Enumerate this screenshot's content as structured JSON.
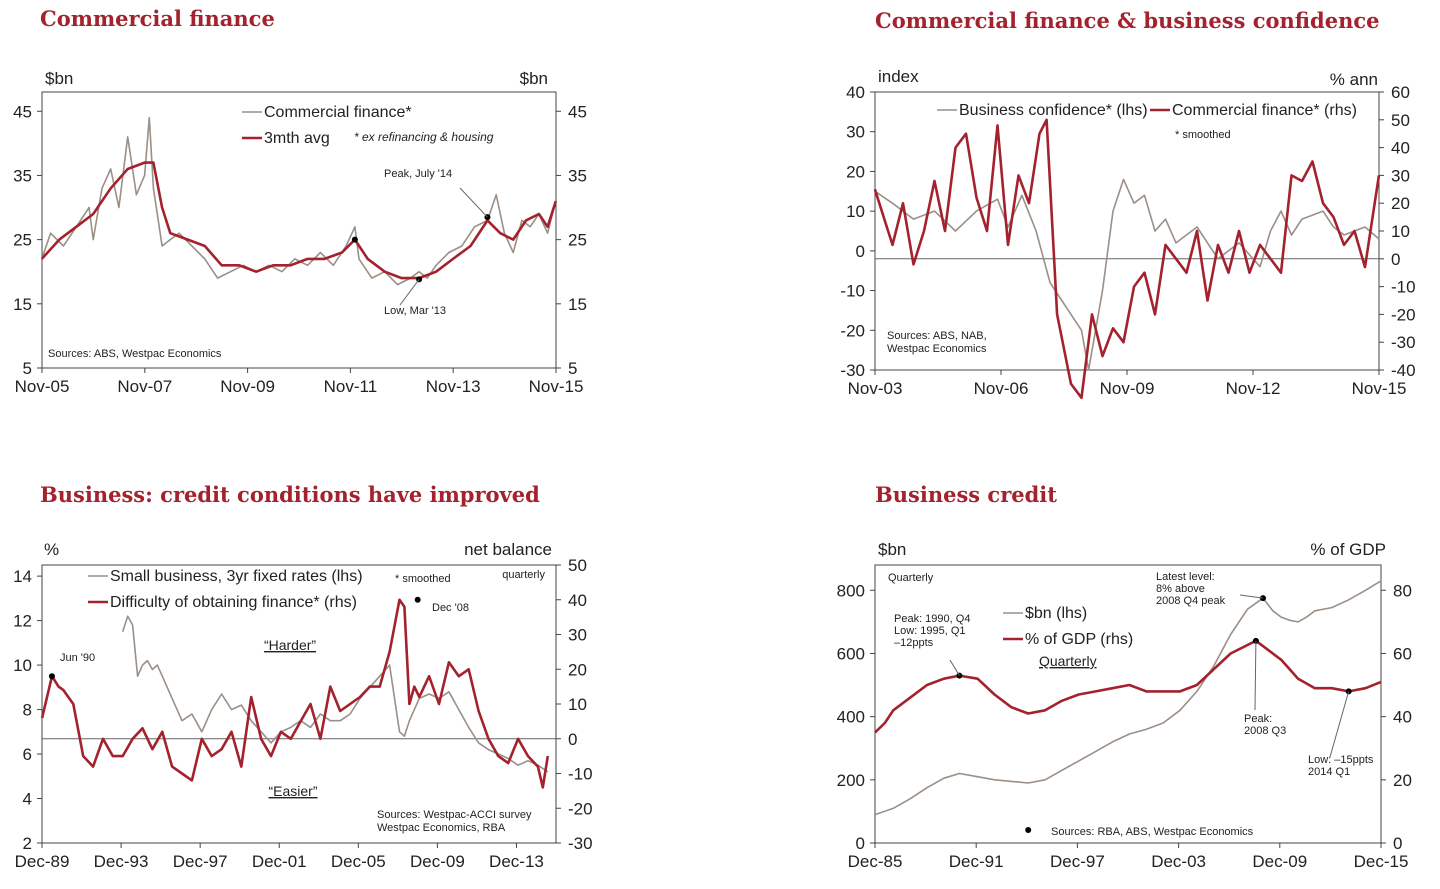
{
  "colors": {
    "accent": "#a3222e",
    "grey_series": "#9b8f86",
    "axis": "#444444"
  },
  "chart_data": [
    {
      "type": "line",
      "title": "Commercial finance",
      "ylabel_left": "$bn",
      "ylabel_right": "$bn",
      "ylim": [
        5,
        48
      ],
      "yticks": [
        5,
        15,
        25,
        35,
        45
      ],
      "x_range": [
        "Nov-05",
        "Nov-15"
      ],
      "x_ticks": [
        "Nov-05",
        "Nov-07",
        "Nov-09",
        "Nov-11",
        "Nov-13",
        "Nov-15"
      ],
      "source": "Sources: ABS,  Westpac Economics",
      "footnote": "* ex refinancing & housing",
      "legend_position": "top-center",
      "series": [
        {
          "name": "Commercial finance*",
          "color": "#9b8f86",
          "x": [
            2005.83,
            2006.0,
            2006.25,
            2006.5,
            2006.75,
            2006.83,
            2007.0,
            2007.17,
            2007.33,
            2007.5,
            2007.67,
            2007.83,
            2007.92,
            2008.0,
            2008.17,
            2008.33,
            2008.5,
            2008.75,
            2009.0,
            2009.25,
            2009.5,
            2009.75,
            2010.0,
            2010.25,
            2010.5,
            2010.75,
            2011.0,
            2011.25,
            2011.5,
            2011.75,
            2011.92,
            2012.0,
            2012.25,
            2012.5,
            2012.75,
            2013.0,
            2013.17,
            2013.33,
            2013.5,
            2013.75,
            2014.0,
            2014.25,
            2014.5,
            2014.67,
            2014.83,
            2015.0,
            2015.17,
            2015.33,
            2015.5,
            2015.67,
            2015.83
          ],
          "values": [
            22,
            26,
            24,
            27,
            30,
            25,
            33,
            36,
            30,
            41,
            32,
            35,
            44,
            33,
            24,
            25,
            26,
            24,
            22,
            19,
            20,
            21,
            20,
            21,
            20,
            22,
            21,
            23,
            21,
            24,
            27,
            22,
            19,
            20,
            18,
            19,
            20,
            19,
            21,
            23,
            24,
            27,
            28,
            32,
            26,
            23,
            28,
            27,
            29,
            26,
            31
          ]
        },
        {
          "name": "3mth avg",
          "color": "#a3222e",
          "x": [
            2005.83,
            2006.17,
            2006.5,
            2006.83,
            2007.17,
            2007.5,
            2007.83,
            2008.0,
            2008.17,
            2008.33,
            2008.67,
            2009.0,
            2009.33,
            2009.67,
            2010.0,
            2010.33,
            2010.67,
            2011.0,
            2011.33,
            2011.67,
            2011.92,
            2012.17,
            2012.5,
            2012.83,
            2013.17,
            2013.5,
            2013.83,
            2014.17,
            2014.5,
            2014.75,
            2015.0,
            2015.25,
            2015.5,
            2015.67,
            2015.83
          ],
          "values": [
            22,
            25,
            27,
            29,
            33,
            36,
            37,
            37,
            30,
            26,
            25,
            24,
            21,
            21,
            20,
            21,
            21,
            22,
            22,
            23,
            25,
            22,
            20,
            19,
            19,
            20,
            22,
            24,
            28,
            26,
            25,
            28,
            29,
            27,
            31
          ]
        }
      ],
      "annotations": [
        {
          "label": "Peak, July '14",
          "x": 2014.5,
          "y": 28.5
        },
        {
          "label": "Low, Mar '13",
          "x": 2013.17,
          "y": 18.8
        }
      ],
      "marked_points": [
        {
          "x": 2011.92,
          "y": 25
        }
      ]
    },
    {
      "type": "line",
      "title": "Commercial finance & business confidence",
      "ylabel_left": "index",
      "ylabel_right": "% ann",
      "ylim_left": [
        -30,
        40
      ],
      "ylim_right": [
        -40,
        60
      ],
      "yticks_left": [
        -30,
        -20,
        -10,
        0,
        10,
        20,
        30,
        40
      ],
      "yticks_right": [
        -40,
        -30,
        -20,
        -10,
        0,
        10,
        20,
        30,
        40,
        50,
        60
      ],
      "x_range": [
        "Nov-03",
        "Nov-15"
      ],
      "x_ticks": [
        "Nov-03",
        "Nov-06",
        "Nov-09",
        "Nov-12",
        "Nov-15"
      ],
      "source": "Sources:  ABS, NAB,\nWestpac Economics",
      "footnote": "* smoothed",
      "legend_position": "top",
      "series": [
        {
          "name": "Business confidence* (lhs)",
          "color": "#9b8f86",
          "axis": "left",
          "x": [
            2003.83,
            2004.25,
            2004.75,
            2005.25,
            2005.75,
            2006.25,
            2006.75,
            2007.0,
            2007.33,
            2007.67,
            2008.0,
            2008.25,
            2008.5,
            2008.75,
            2008.92,
            2009.25,
            2009.5,
            2009.75,
            2010.0,
            2010.25,
            2010.5,
            2010.75,
            2011.0,
            2011.5,
            2012.0,
            2012.5,
            2013.0,
            2013.25,
            2013.5,
            2013.75,
            2014.0,
            2014.5,
            2014.75,
            2015.0,
            2015.5,
            2015.83
          ],
          "values": [
            15,
            12,
            8,
            10,
            5,
            10,
            13,
            6,
            14,
            5,
            -8,
            -12,
            -16,
            -20,
            -30,
            -10,
            10,
            18,
            12,
            14,
            5,
            8,
            2,
            6,
            -2,
            2,
            -4,
            5,
            10,
            4,
            8,
            10,
            6,
            4,
            6,
            3
          ]
        },
        {
          "name": "Commercial finance* (rhs)",
          "color": "#a3222e",
          "axis": "right",
          "x": [
            2003.83,
            2004.25,
            2004.5,
            2004.75,
            2005.0,
            2005.25,
            2005.5,
            2005.75,
            2006.0,
            2006.25,
            2006.5,
            2006.75,
            2007.0,
            2007.25,
            2007.5,
            2007.75,
            2007.92,
            2008.17,
            2008.5,
            2008.75,
            2009.0,
            2009.25,
            2009.5,
            2009.75,
            2010.0,
            2010.25,
            2010.5,
            2010.75,
            2011.0,
            2011.25,
            2011.5,
            2011.75,
            2012.0,
            2012.25,
            2012.5,
            2012.75,
            2013.0,
            2013.25,
            2013.5,
            2013.75,
            2014.0,
            2014.25,
            2014.5,
            2014.75,
            2015.0,
            2015.25,
            2015.5,
            2015.83
          ],
          "values": [
            25,
            5,
            20,
            -2,
            10,
            28,
            10,
            40,
            45,
            22,
            10,
            48,
            5,
            30,
            20,
            45,
            50,
            -20,
            -45,
            -50,
            -20,
            -35,
            -25,
            -30,
            -10,
            -5,
            -20,
            5,
            0,
            -5,
            10,
            -15,
            5,
            -5,
            10,
            -5,
            5,
            0,
            -5,
            30,
            28,
            35,
            20,
            15,
            5,
            10,
            -3,
            30
          ]
        }
      ]
    },
    {
      "type": "line",
      "title": "Business: credit conditions have improved",
      "ylabel_left": "%",
      "ylabel_right": "net balance",
      "ylim_left": [
        2,
        14.5
      ],
      "ylim_right": [
        -30,
        50
      ],
      "yticks_left": [
        2,
        4,
        6,
        8,
        10,
        12,
        14
      ],
      "yticks_right": [
        -30,
        -20,
        -10,
        0,
        10,
        20,
        30,
        40,
        50
      ],
      "x_range": [
        "Dec-89",
        "Dec-15"
      ],
      "x_ticks": [
        "Dec-89",
        "Dec-93",
        "Dec-97",
        "Dec-01",
        "Dec-05",
        "Dec-09",
        "Dec-13"
      ],
      "source": "Sources: Westpac-ACCI survey\nWestpac Economics, RBA",
      "footnote": "* smoothed",
      "frequency": "quarterly",
      "zones": [
        "“Harder”",
        "“Easier”"
      ],
      "legend_position": "top",
      "series": [
        {
          "name": "Small business, 3yr fixed rates (lhs)",
          "color": "#9b8f86",
          "axis": "left",
          "x": [
            1994.0,
            1994.25,
            1994.5,
            1994.75,
            1995.0,
            1995.25,
            1995.5,
            1995.75,
            1996.0,
            1996.5,
            1997.0,
            1997.5,
            1998.0,
            1998.5,
            1999.0,
            1999.5,
            2000.0,
            2000.5,
            2001.0,
            2001.5,
            2002.0,
            2002.5,
            2003.0,
            2003.5,
            2004.0,
            2004.5,
            2005.0,
            2005.5,
            2006.0,
            2006.5,
            2007.0,
            2007.5,
            2008.0,
            2008.25,
            2008.5,
            2009.0,
            2009.5,
            2010.0,
            2010.5,
            2011.0,
            2011.5,
            2012.0,
            2012.5,
            2013.0,
            2013.5,
            2014.0,
            2014.5,
            2015.0,
            2015.5
          ],
          "values": [
            11.5,
            12.2,
            11.8,
            9.5,
            10.0,
            10.2,
            9.8,
            10.0,
            9.5,
            8.5,
            7.5,
            7.8,
            7.0,
            8.0,
            8.7,
            8.0,
            8.2,
            7.5,
            7.0,
            6.5,
            7.0,
            7.2,
            7.5,
            7.2,
            7.8,
            7.5,
            7.5,
            7.8,
            8.5,
            9.0,
            9.5,
            10.0,
            7.0,
            6.8,
            7.5,
            8.5,
            8.7,
            8.5,
            8.8,
            8.0,
            7.2,
            6.5,
            6.2,
            6.0,
            5.8,
            5.5,
            5.7,
            5.5,
            5.2
          ]
        },
        {
          "name": "Difficulty of obtaining finance* (rhs)",
          "color": "#a3222e",
          "axis": "right",
          "x": [
            1989.92,
            1990.42,
            1990.75,
            1991.0,
            1991.5,
            1992.0,
            1992.5,
            1993.0,
            1993.5,
            1994.0,
            1994.5,
            1995.0,
            1995.5,
            1996.0,
            1996.5,
            1997.0,
            1997.5,
            1998.0,
            1998.5,
            1999.0,
            1999.5,
            2000.0,
            2000.5,
            2001.0,
            2001.5,
            2002.0,
            2002.5,
            2003.0,
            2003.5,
            2004.0,
            2004.5,
            2005.0,
            2005.5,
            2006.0,
            2006.5,
            2007.0,
            2007.5,
            2008.0,
            2008.25,
            2008.5,
            2008.75,
            2009.0,
            2009.5,
            2010.0,
            2010.5,
            2011.0,
            2011.5,
            2012.0,
            2012.5,
            2013.0,
            2013.5,
            2014.0,
            2014.5,
            2015.0,
            2015.25,
            2015.5
          ],
          "values": [
            6,
            18,
            15,
            14,
            10,
            -5,
            -8,
            0,
            -5,
            -5,
            0,
            3,
            -3,
            2,
            -8,
            -10,
            -12,
            0,
            -5,
            -3,
            2,
            -8,
            12,
            0,
            -5,
            2,
            0,
            5,
            10,
            0,
            15,
            8,
            10,
            12,
            15,
            15,
            25,
            40,
            38,
            10,
            15,
            12,
            18,
            10,
            22,
            18,
            20,
            8,
            0,
            -5,
            -7,
            0,
            -5,
            -8,
            -14,
            -5
          ]
        }
      ],
      "annotations": [
        {
          "label": "Jun '90",
          "x": 1990.42,
          "y": 18
        },
        {
          "label": "Dec '08",
          "x": 2008.92,
          "y": 40
        }
      ]
    },
    {
      "type": "line",
      "title": "Business credit",
      "ylabel_left": "$bn",
      "ylabel_right": "% of GDP",
      "ylim_left": [
        0,
        880
      ],
      "ylim_right": [
        0,
        88
      ],
      "yticks_left": [
        0,
        200,
        400,
        600,
        800
      ],
      "yticks_right": [
        0,
        20,
        40,
        60,
        80
      ],
      "x_range": [
        "Dec-85",
        "Dec-15"
      ],
      "x_ticks": [
        "Dec-85",
        "Dec-91",
        "Dec-97",
        "Dec-03",
        "Dec-09",
        "Dec-15"
      ],
      "source": "Sources: RBA, ABS, Westpac Economics",
      "frequency_labels": [
        "Quarterly",
        "Quarterly"
      ],
      "legend_position": "center-left",
      "series": [
        {
          "name": "$bn (lhs)",
          "color": "#9b8f86",
          "axis": "left",
          "x": [
            1985.92,
            1987,
            1988,
            1989,
            1990,
            1990.92,
            1992,
            1993,
            1994,
            1995,
            1996,
            1997,
            1998,
            1999,
            2000,
            2001,
            2002,
            2003,
            2004,
            2005,
            2006,
            2007,
            2008,
            2008.92,
            2009.5,
            2010,
            2010.5,
            2011,
            2011.5,
            2012,
            2013,
            2014,
            2015,
            2015.92
          ],
          "values": [
            90,
            110,
            140,
            175,
            205,
            220,
            210,
            200,
            195,
            190,
            200,
            230,
            260,
            290,
            320,
            345,
            360,
            380,
            420,
            480,
            560,
            660,
            740,
            775,
            735,
            715,
            705,
            700,
            715,
            735,
            745,
            770,
            800,
            830
          ]
        },
        {
          "name": "% of GDP (rhs)",
          "color": "#a3222e",
          "axis": "right",
          "x": [
            1985.92,
            1986.5,
            1987,
            1988,
            1989,
            1990,
            1990.92,
            1992,
            1993,
            1994,
            1995,
            1996,
            1997,
            1998,
            1999,
            2000,
            2001,
            2002,
            2003,
            2004,
            2005,
            2006,
            2007,
            2008.5,
            2009,
            2010,
            2011,
            2012,
            2013,
            2014,
            2015,
            2015.92
          ],
          "values": [
            35,
            38,
            42,
            46,
            50,
            52,
            53,
            52,
            47,
            43,
            41,
            42,
            45,
            47,
            48,
            49,
            50,
            48,
            48,
            48,
            50,
            55,
            60,
            64,
            62,
            58,
            52,
            49,
            49,
            48,
            49,
            51
          ]
        }
      ],
      "annotations": [
        {
          "label": "Peak: 1990, Q4\nLow: 1995, Q1\n–12ppts",
          "x": 1990.92,
          "y": 53
        },
        {
          "label": "Latest level:\n8% above\n2008 Q4 peak",
          "x": 2008.92,
          "y": 775
        },
        {
          "label": "Peak:\n2008 Q3",
          "x": 2008.5,
          "y": 64
        },
        {
          "label": "Low: –15ppts\n2014 Q1",
          "x": 2014.0,
          "y": 48
        }
      ],
      "marked_points": [
        {
          "x": 1995.0,
          "y": 41
        }
      ]
    }
  ]
}
